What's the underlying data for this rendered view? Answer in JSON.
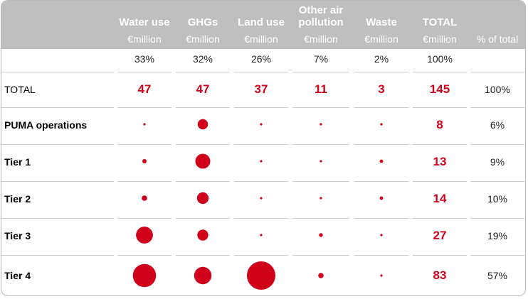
{
  "accent_color": "#d0021b",
  "header_band_color": "#bfbfbf",
  "columns": [
    {
      "label": "Water use",
      "unit": "€million",
      "share": "33%"
    },
    {
      "label": "GHGs",
      "unit": "€million",
      "share": "32%"
    },
    {
      "label": "Land use",
      "unit": "€million",
      "share": "26%"
    },
    {
      "label": "Other air pollution",
      "unit": "€million",
      "share": "7%"
    },
    {
      "label": "Waste",
      "unit": "€million",
      "share": "2%"
    },
    {
      "label": "TOTAL",
      "unit": "€million",
      "share": "100%"
    }
  ],
  "pct_of_total_header": "% of total",
  "rows": [
    {
      "label": "TOTAL",
      "total": "47|47|37|11|3|145",
      "pct": "100%"
    },
    {
      "label": "PUMA operations",
      "total": "8",
      "pct": "6%"
    },
    {
      "label": "Tier 1",
      "total": "13",
      "pct": "9%"
    },
    {
      "label": "Tier 2",
      "total": "14",
      "pct": "10%"
    },
    {
      "label": "Tier 3",
      "total": "27",
      "pct": "19%"
    },
    {
      "label": "Tier 4",
      "total": "83",
      "pct": "57%"
    }
  ],
  "total_row_values": [
    "47",
    "47",
    "37",
    "11",
    "3",
    "145"
  ],
  "chart_data": {
    "type": "table",
    "categories": [
      "Water use",
      "GHGs",
      "Land use",
      "Other air pollution",
      "Waste"
    ],
    "series": [
      {
        "name": "PUMA operations",
        "values": [
          0.1,
          3.5,
          0.05,
          0.1,
          0.05
        ]
      },
      {
        "name": "Tier 1",
        "values": [
          0.6,
          7.5,
          0.05,
          0.1,
          0.4
        ]
      },
      {
        "name": "Tier 2",
        "values": [
          1.0,
          4.5,
          0.05,
          0.1,
          0.4
        ]
      },
      {
        "name": "Tier 3",
        "values": [
          9.5,
          4.0,
          0.05,
          0.5,
          0.05
        ]
      },
      {
        "name": "Tier 4",
        "values": [
          18,
          10,
          27,
          1.0,
          0.05
        ]
      }
    ],
    "tier_totals": [
      8,
      13,
      14,
      27,
      83
    ],
    "tier_pct": [
      6,
      9,
      10,
      19,
      57
    ],
    "column_totals": [
      47,
      47,
      37,
      11,
      3
    ],
    "grand_total": 145
  }
}
